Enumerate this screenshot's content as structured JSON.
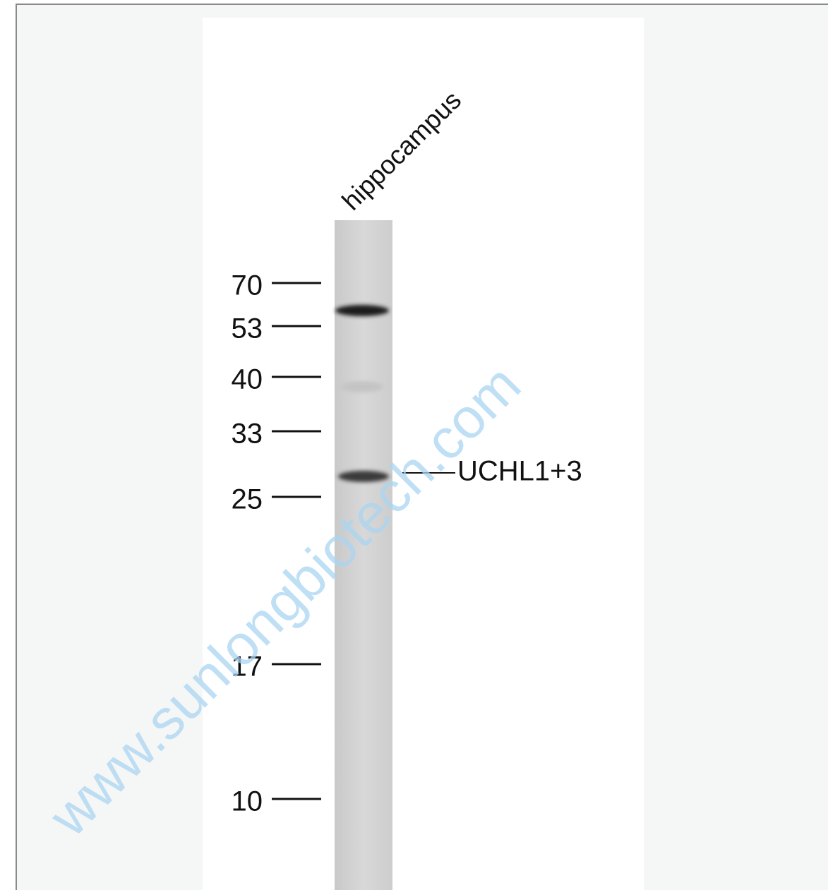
{
  "blot": {
    "lane_label": "hippocampus",
    "markers": [
      "70",
      "53",
      "40",
      "33",
      "25",
      "17",
      "10"
    ],
    "band_label": "UCHL1+3",
    "watermark": "www.sunlongbiotech.com"
  }
}
